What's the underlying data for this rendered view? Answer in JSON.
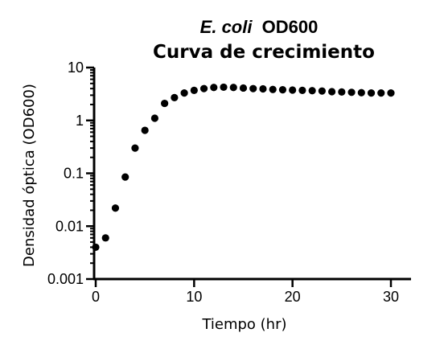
{
  "chart_data": {
    "type": "scatter",
    "title_italic": "E. coli",
    "title_rest": "OD600",
    "subtitle": "Curva de crecimiento",
    "xlabel": "Tiempo (hr)",
    "ylabel": "Densidad óptica (OD600)",
    "xlim": [
      0,
      32
    ],
    "ylim": [
      0.001,
      10
    ],
    "yscale": "log",
    "x_ticks": [
      0,
      10,
      20,
      30
    ],
    "x_tick_labels": [
      "0",
      "10",
      "20",
      "30"
    ],
    "y_ticks": [
      0.001,
      0.01,
      0.1,
      1,
      10
    ],
    "y_tick_labels": [
      "0.001",
      "0.01",
      "0.1",
      "1",
      "10"
    ],
    "grid": false,
    "marker_color": "#000000",
    "x": [
      0,
      1,
      2,
      3,
      4,
      5,
      6,
      7,
      8,
      9,
      10,
      11,
      12,
      13,
      14,
      15,
      16,
      17,
      18,
      19,
      20,
      21,
      22,
      23,
      24,
      25,
      26,
      27,
      28,
      29,
      30
    ],
    "y": [
      0.004,
      0.006,
      0.022,
      0.085,
      0.3,
      0.65,
      1.1,
      2.1,
      2.7,
      3.3,
      3.7,
      4.0,
      4.2,
      4.25,
      4.2,
      4.1,
      4.0,
      3.95,
      3.85,
      3.8,
      3.75,
      3.7,
      3.65,
      3.6,
      3.5,
      3.45,
      3.4,
      3.35,
      3.3,
      3.3,
      3.3
    ]
  }
}
